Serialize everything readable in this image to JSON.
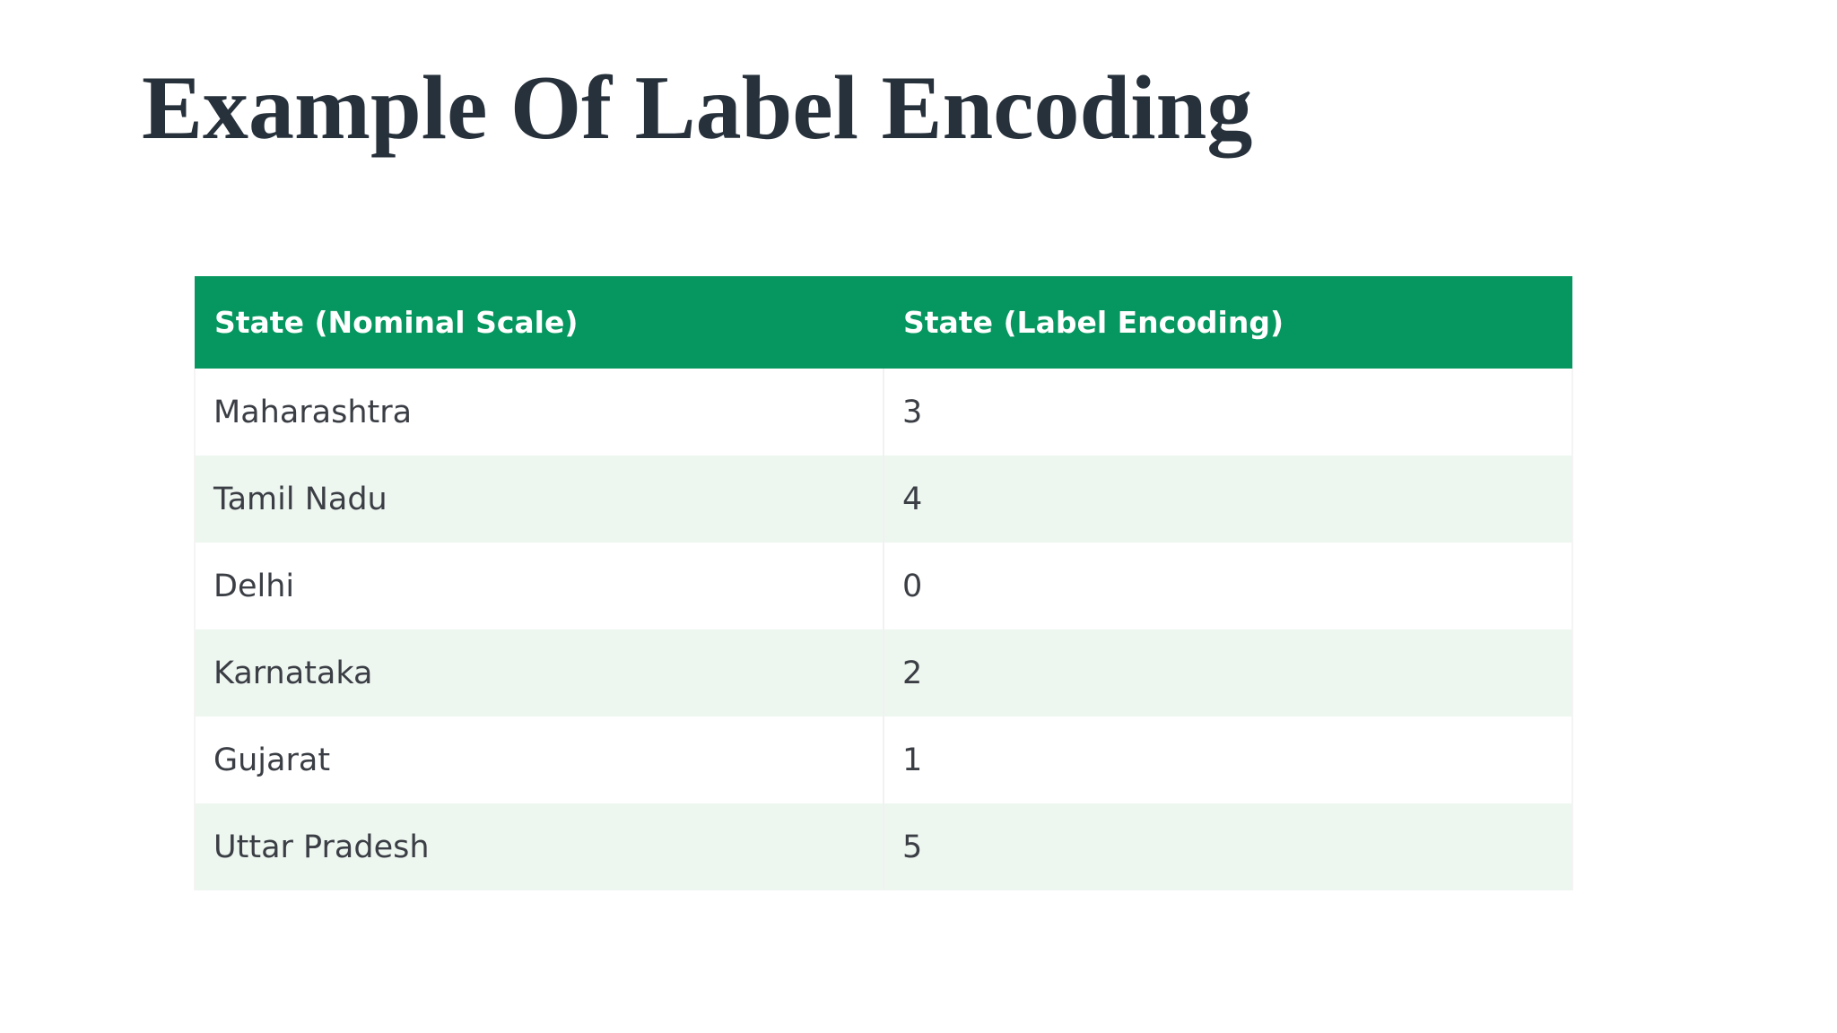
{
  "slide": {
    "title": "Example Of Label Encoding"
  },
  "table": {
    "headers": [
      "State (Nominal Scale)",
      "State (Label Encoding)"
    ],
    "rows": [
      [
        "Maharashtra",
        "3"
      ],
      [
        "Tamil Nadu",
        "4"
      ],
      [
        "Delhi",
        "0"
      ],
      [
        "Karnataka",
        "2"
      ],
      [
        "Gujarat",
        "1"
      ],
      [
        "Uttar Pradesh",
        "5"
      ]
    ]
  },
  "colors": {
    "header_bg": "#05975f",
    "header_text": "#ffffff",
    "row_alt_bg": "#eef6f0",
    "title_text": "#27313b",
    "cell_text": "#3b3f45"
  }
}
